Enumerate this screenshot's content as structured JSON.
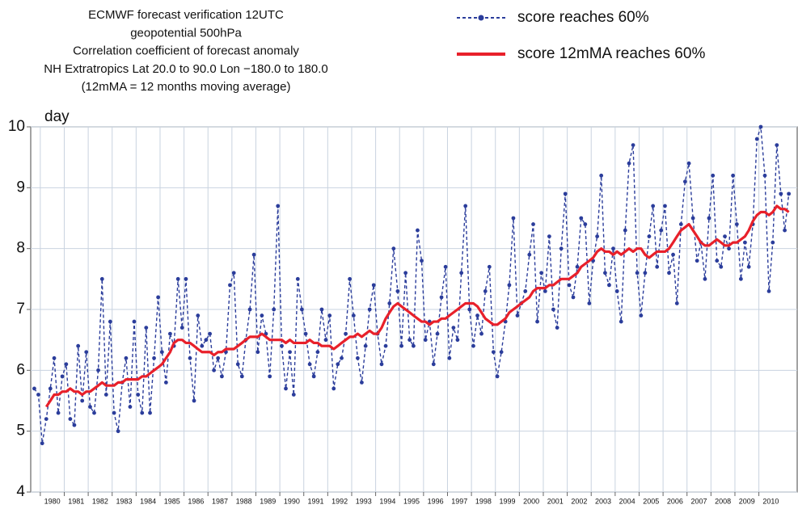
{
  "chart_data": {
    "type": "line",
    "title": [
      "ECMWF forecast verification 12UTC",
      "geopotential 500hPa",
      "Correlation coefficient of forecast anomaly",
      "NH Extratropics Lat 20.0 to 90.0 Lon −180.0 to 180.0",
      "(12mMA = 12 months moving average)"
    ],
    "y_label": "day",
    "xlim": [
      1979.6,
      2011.6
    ],
    "xticks": [
      1980,
      1981,
      1982,
      1983,
      1984,
      1985,
      1986,
      1987,
      1988,
      1989,
      1990,
      1991,
      1992,
      1993,
      1994,
      1995,
      1996,
      1997,
      1998,
      1999,
      2000,
      2001,
      2002,
      2003,
      2004,
      2005,
      2006,
      2007,
      2008,
      2009,
      2010
    ],
    "ylim": [
      4,
      10
    ],
    "yticks": [
      4,
      5,
      6,
      7,
      8,
      9,
      10
    ],
    "grid": true,
    "x": [
      1979.75,
      1979.92,
      1980.08,
      1980.25,
      1980.42,
      1980.58,
      1980.75,
      1980.92,
      1981.08,
      1981.25,
      1981.42,
      1981.58,
      1981.75,
      1981.92,
      1982.08,
      1982.25,
      1982.42,
      1982.58,
      1982.75,
      1982.92,
      1983.08,
      1983.25,
      1983.42,
      1983.58,
      1983.75,
      1983.92,
      1984.08,
      1984.25,
      1984.42,
      1984.58,
      1984.75,
      1984.92,
      1985.08,
      1985.25,
      1985.42,
      1985.58,
      1985.75,
      1985.92,
      1986.08,
      1986.25,
      1986.42,
      1986.58,
      1986.75,
      1986.92,
      1987.08,
      1987.25,
      1987.42,
      1987.58,
      1987.75,
      1987.92,
      1988.08,
      1988.25,
      1988.42,
      1988.58,
      1988.75,
      1988.92,
      1989.08,
      1989.25,
      1989.42,
      1989.58,
      1989.75,
      1989.92,
      1990.08,
      1990.25,
      1990.42,
      1990.58,
      1990.75,
      1990.92,
      1991.08,
      1991.25,
      1991.42,
      1991.58,
      1991.75,
      1991.92,
      1992.08,
      1992.25,
      1992.42,
      1992.58,
      1992.75,
      1992.92,
      1993.08,
      1993.25,
      1993.42,
      1993.58,
      1993.75,
      1993.92,
      1994.08,
      1994.25,
      1994.42,
      1994.58,
      1994.75,
      1994.92,
      1995.08,
      1995.25,
      1995.42,
      1995.58,
      1995.75,
      1995.92,
      1996.08,
      1996.25,
      1996.42,
      1996.58,
      1996.75,
      1996.92,
      1997.08,
      1997.25,
      1997.42,
      1997.58,
      1997.75,
      1997.92,
      1998.08,
      1998.25,
      1998.42,
      1998.58,
      1998.75,
      1998.92,
      1999.08,
      1999.25,
      1999.42,
      1999.58,
      1999.75,
      1999.92,
      2000.08,
      2000.25,
      2000.42,
      2000.58,
      2000.75,
      2000.92,
      2001.08,
      2001.25,
      2001.42,
      2001.58,
      2001.75,
      2001.92,
      2002.08,
      2002.25,
      2002.42,
      2002.58,
      2002.75,
      2002.92,
      2003.08,
      2003.25,
      2003.42,
      2003.58,
      2003.75,
      2003.92,
      2004.08,
      2004.25,
      2004.42,
      2004.58,
      2004.75,
      2004.92,
      2005.08,
      2005.25,
      2005.42,
      2005.58,
      2005.75,
      2005.92,
      2006.08,
      2006.25,
      2006.42,
      2006.58,
      2006.75,
      2006.92,
      2007.08,
      2007.25,
      2007.42,
      2007.58,
      2007.75,
      2007.92,
      2008.08,
      2008.25,
      2008.42,
      2008.58,
      2008.75,
      2008.92,
      2009.08,
      2009.25,
      2009.42,
      2009.58,
      2009.75,
      2009.92,
      2010.08,
      2010.25,
      2010.42,
      2010.58,
      2010.75,
      2010.92,
      2011.08,
      2011.25
    ],
    "series": [
      {
        "name": "score reaches 60%",
        "color": "#2b3d9b",
        "line_style": "dashed",
        "marker": "circle",
        "values": [
          5.7,
          5.6,
          4.8,
          5.2,
          5.7,
          6.2,
          5.3,
          5.9,
          6.1,
          5.2,
          5.1,
          6.4,
          5.5,
          6.3,
          5.4,
          5.3,
          6.0,
          7.5,
          5.6,
          6.8,
          5.3,
          5.0,
          5.8,
          6.2,
          5.4,
          6.8,
          5.6,
          5.3,
          6.7,
          5.3,
          6.2,
          7.2,
          6.3,
          5.8,
          6.6,
          6.4,
          7.5,
          6.7,
          7.5,
          6.2,
          5.5,
          6.9,
          6.4,
          6.5,
          6.6,
          6.0,
          6.2,
          5.9,
          6.3,
          7.4,
          7.6,
          6.1,
          5.9,
          6.5,
          7.0,
          7.9,
          6.3,
          6.9,
          6.6,
          5.9,
          7.0,
          8.7,
          6.4,
          5.7,
          6.3,
          5.6,
          7.5,
          7.0,
          6.6,
          6.1,
          5.9,
          6.3,
          7.0,
          6.5,
          6.9,
          5.7,
          6.1,
          6.2,
          6.6,
          7.5,
          6.9,
          6.2,
          5.8,
          6.4,
          7.0,
          7.4,
          6.6,
          6.1,
          6.4,
          7.1,
          8.0,
          7.3,
          6.4,
          7.6,
          6.5,
          6.4,
          8.3,
          7.8,
          6.5,
          6.8,
          6.1,
          6.6,
          7.2,
          7.7,
          6.2,
          6.7,
          6.5,
          7.6,
          8.7,
          7.0,
          6.4,
          6.9,
          6.6,
          7.3,
          7.7,
          6.3,
          5.9,
          6.3,
          6.8,
          7.4,
          8.5,
          6.9,
          7.1,
          7.3,
          7.9,
          8.4,
          6.8,
          7.6,
          7.3,
          8.2,
          7.0,
          6.7,
          8.0,
          8.9,
          7.4,
          7.2,
          7.7,
          8.5,
          8.4,
          7.1,
          7.8,
          8.2,
          9.2,
          7.6,
          7.4,
          8.0,
          7.3,
          6.8,
          8.3,
          9.4,
          9.7,
          7.6,
          6.9,
          7.6,
          8.2,
          8.7,
          7.7,
          8.3,
          8.7,
          7.6,
          7.9,
          7.1,
          8.4,
          9.1,
          9.4,
          8.5,
          7.8,
          8.1,
          7.5,
          8.5,
          9.2,
          7.8,
          7.7,
          8.2,
          8.0,
          9.2,
          8.4,
          7.5,
          8.1,
          7.7,
          8.4,
          9.8,
          10.0,
          9.2,
          7.3,
          8.1,
          9.7,
          8.9,
          8.3,
          8.9
        ]
      },
      {
        "name": "score 12mMA reaches 60%",
        "color": "#e8202a",
        "line_style": "solid",
        "values": [
          null,
          null,
          null,
          5.4,
          5.5,
          5.6,
          5.6,
          5.65,
          5.65,
          5.7,
          5.65,
          5.65,
          5.6,
          5.65,
          5.65,
          5.7,
          5.75,
          5.8,
          5.75,
          5.75,
          5.75,
          5.8,
          5.8,
          5.85,
          5.85,
          5.85,
          5.85,
          5.9,
          5.9,
          5.95,
          6.0,
          6.05,
          6.1,
          6.2,
          6.3,
          6.45,
          6.5,
          6.5,
          6.45,
          6.45,
          6.4,
          6.35,
          6.3,
          6.3,
          6.3,
          6.25,
          6.3,
          6.3,
          6.35,
          6.35,
          6.35,
          6.4,
          6.45,
          6.5,
          6.55,
          6.55,
          6.55,
          6.6,
          6.55,
          6.5,
          6.5,
          6.5,
          6.5,
          6.45,
          6.5,
          6.45,
          6.45,
          6.45,
          6.45,
          6.5,
          6.45,
          6.45,
          6.4,
          6.4,
          6.4,
          6.35,
          6.4,
          6.45,
          6.5,
          6.55,
          6.55,
          6.6,
          6.55,
          6.6,
          6.65,
          6.6,
          6.6,
          6.7,
          6.85,
          6.95,
          7.05,
          7.1,
          7.05,
          7.0,
          6.95,
          6.9,
          6.85,
          6.8,
          6.8,
          6.75,
          6.8,
          6.8,
          6.85,
          6.85,
          6.9,
          6.95,
          7.0,
          7.05,
          7.1,
          7.1,
          7.1,
          7.05,
          6.95,
          6.85,
          6.8,
          6.75,
          6.75,
          6.8,
          6.85,
          6.95,
          7.0,
          7.05,
          7.1,
          7.15,
          7.2,
          7.3,
          7.35,
          7.35,
          7.35,
          7.4,
          7.4,
          7.45,
          7.5,
          7.5,
          7.5,
          7.55,
          7.6,
          7.7,
          7.75,
          7.8,
          7.85,
          7.95,
          8.0,
          7.95,
          7.95,
          7.9,
          7.95,
          7.9,
          7.95,
          8.0,
          7.95,
          8.0,
          8.0,
          7.9,
          7.85,
          7.9,
          7.95,
          7.95,
          7.95,
          8.0,
          8.1,
          8.2,
          8.3,
          8.35,
          8.4,
          8.3,
          8.2,
          8.1,
          8.05,
          8.05,
          8.1,
          8.15,
          8.1,
          8.05,
          8.05,
          8.1,
          8.1,
          8.15,
          8.2,
          8.3,
          8.45,
          8.55,
          8.6,
          8.6,
          8.55,
          8.6,
          8.7,
          8.65,
          8.65,
          8.6
        ]
      }
    ]
  }
}
